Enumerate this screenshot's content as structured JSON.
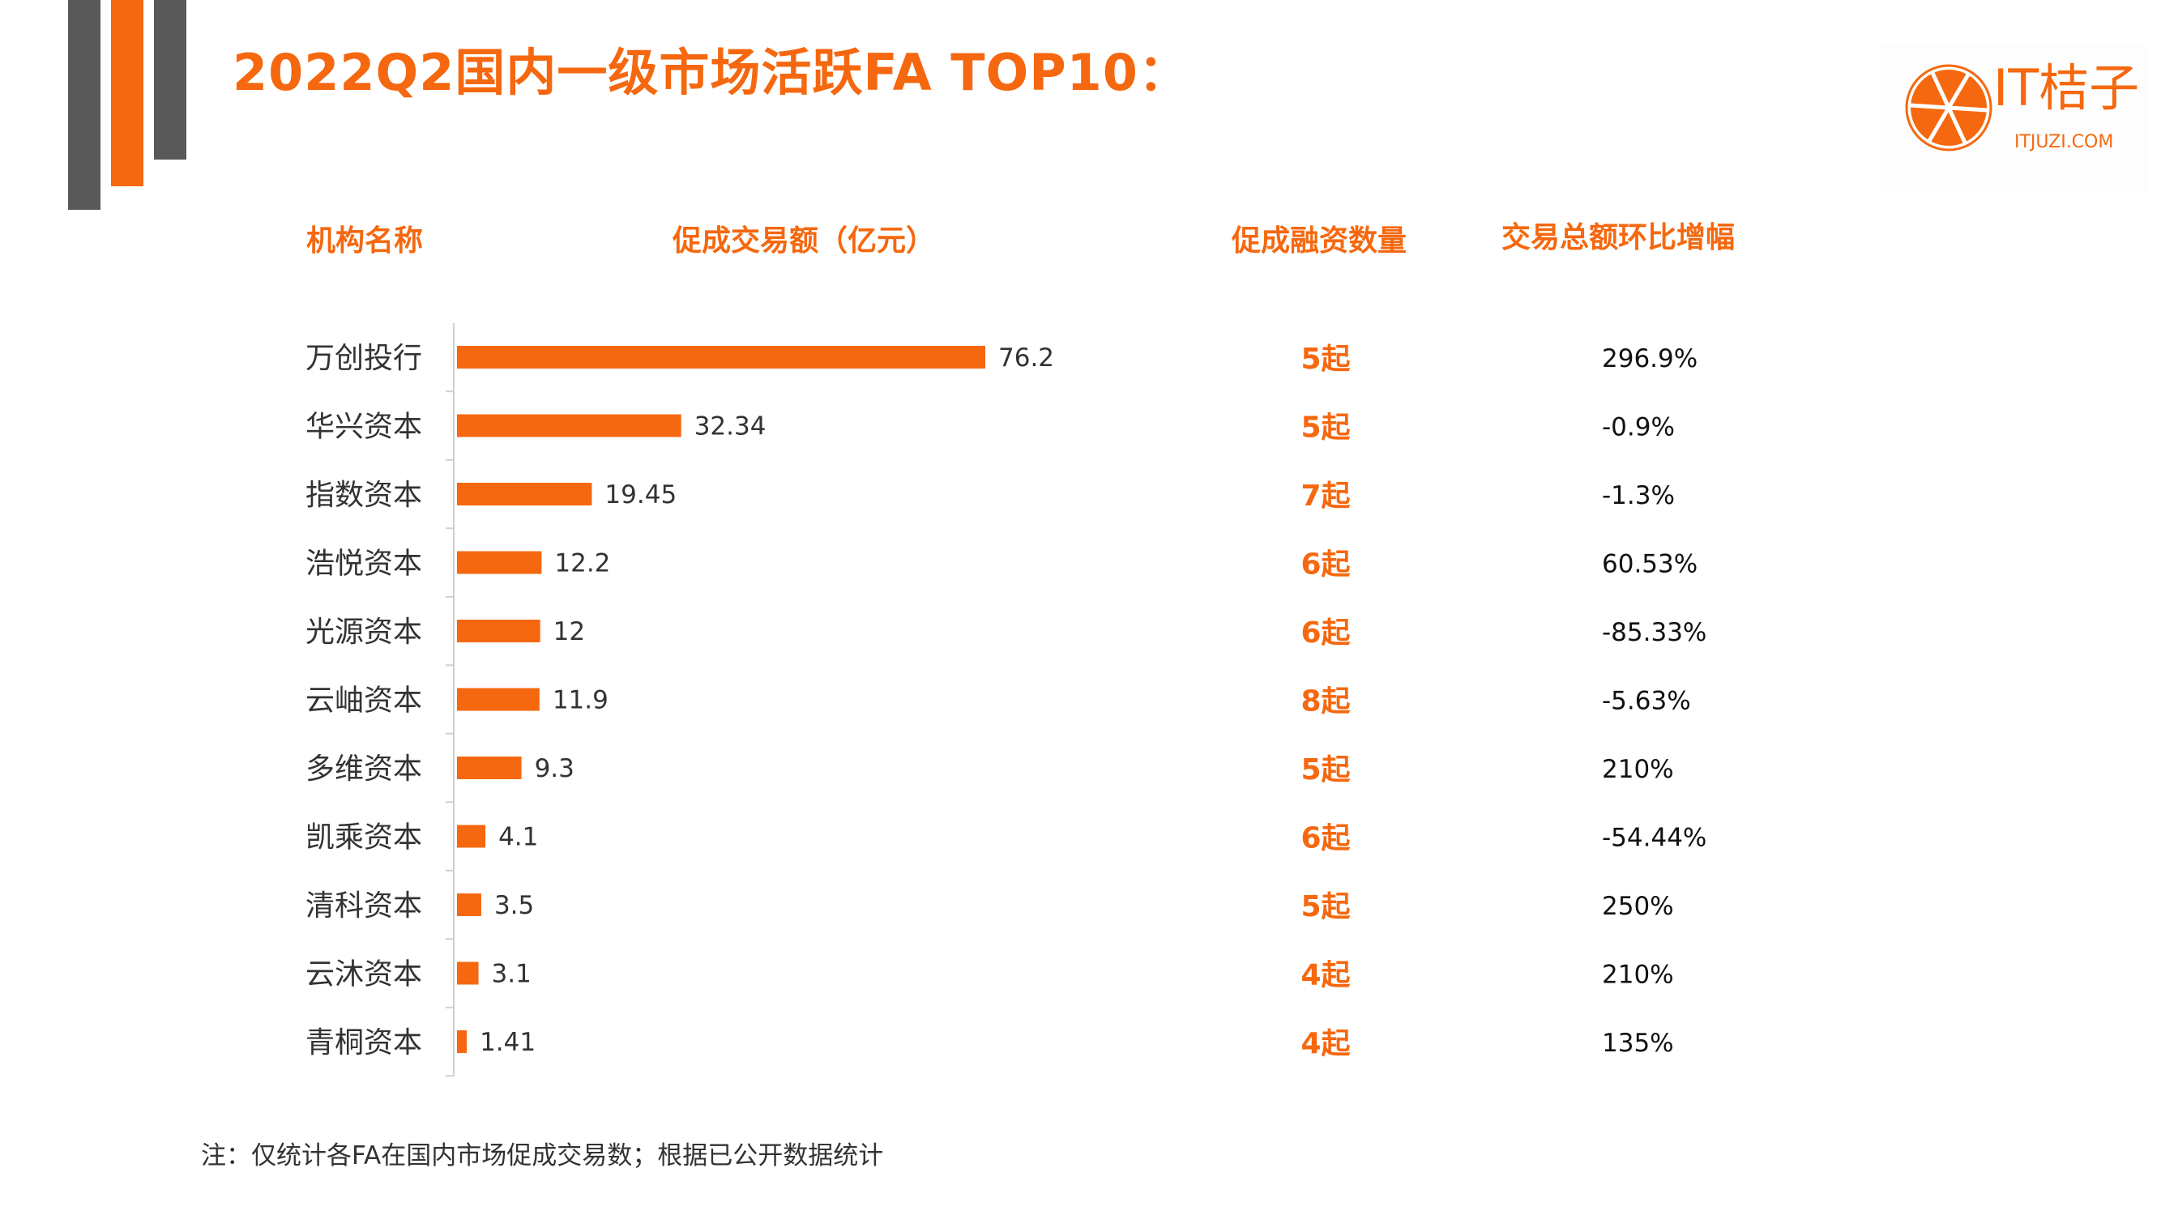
{
  "title": "2022Q2国内一级市场活跃FA TOP10：",
  "logo": {
    "text": "IT桔子",
    "sub": "ITJUZI.COM"
  },
  "headers": {
    "name": "机构名称",
    "amount": "促成交易额（亿元）",
    "count": "促成融资数量",
    "growth": "交易总额环比增幅"
  },
  "colors": {
    "accent": "#f5680f",
    "gray": "#595959"
  },
  "chart_data": {
    "type": "bar",
    "orientation": "horizontal",
    "categories": [
      "万创投行",
      "华兴资本",
      "指数资本",
      "浩悦资本",
      "光源资本",
      "云岫资本",
      "多维资本",
      "凯乘资本",
      "清科资本",
      "云沐资本",
      "青桐资本"
    ],
    "values": [
      76.2,
      32.34,
      19.45,
      12.2,
      12,
      11.9,
      9.3,
      4.1,
      3.5,
      3.1,
      1.41
    ],
    "value_labels": [
      "76.2",
      "32.34",
      "19.45",
      "12.2",
      "12",
      "11.9",
      "9.3",
      "4.1",
      "3.5",
      "3.1",
      "1.41"
    ],
    "counts": [
      "5起",
      "5起",
      "7起",
      "6起",
      "6起",
      "8起",
      "5起",
      "6起",
      "5起",
      "4起",
      "4起"
    ],
    "growth": [
      "296.9%",
      "-0.9%",
      "-1.3%",
      "60.53%",
      "-85.33%",
      "-5.63%",
      "210%",
      "-54.44%",
      "250%",
      "210%",
      "135%"
    ],
    "xlim": [
      0,
      76.2
    ],
    "grid": false
  },
  "note": "注：仅统计各FA在国内市场促成交易数；根据已公开数据统计"
}
